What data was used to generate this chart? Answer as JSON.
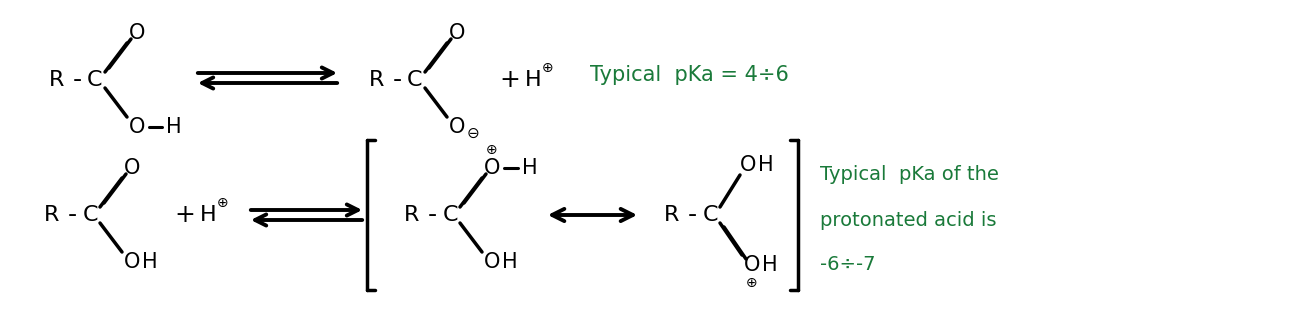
{
  "bg_color": "#ffffff",
  "black": "#000000",
  "green": "#1a7a3a",
  "figsize": [
    13.08,
    3.23
  ],
  "dpi": 100,
  "top_pka_text": "Typical  pKa = 4÷6",
  "bot_pka_text1": "Typical  pKa of the",
  "bot_pka_text2": "protonated acid is",
  "bot_pka_text3": "-6÷-7"
}
